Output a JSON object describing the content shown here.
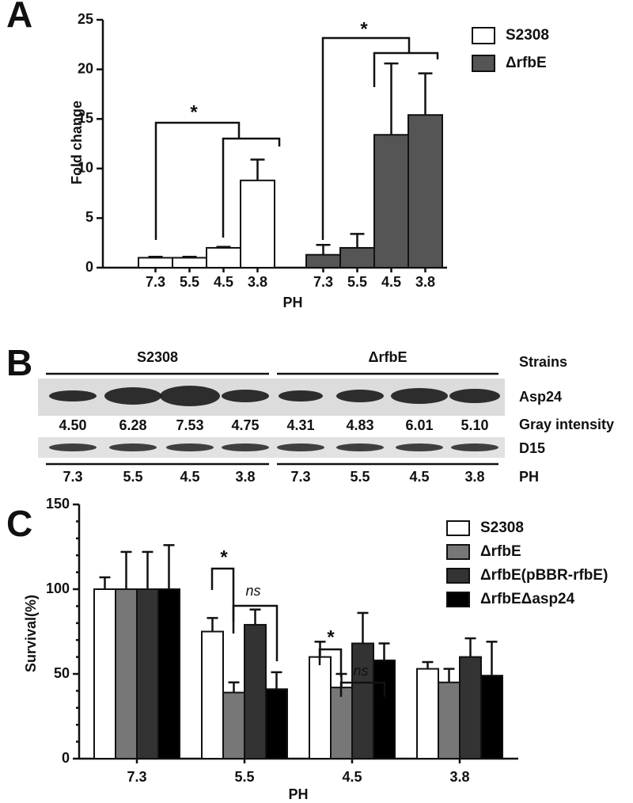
{
  "chart_data": [
    {
      "panel": "A",
      "type": "bar",
      "arrangement": "by-series",
      "y_label": "Fold change",
      "x_label": "PH",
      "categories": [
        "7.3",
        "5.5",
        "4.5",
        "3.8"
      ],
      "series": [
        {
          "name": "S2308",
          "color": "#ffffff",
          "values": [
            1.0,
            1.0,
            2.0,
            8.8
          ],
          "errors": [
            0.1,
            0.1,
            0.1,
            2.1
          ]
        },
        {
          "name": "ΔrfbE",
          "color": "#555555",
          "values": [
            1.3,
            2.0,
            13.4,
            15.4
          ],
          "errors": [
            1.0,
            1.4,
            7.2,
            4.2
          ]
        }
      ],
      "ylim": [
        0,
        25
      ],
      "yticks": [
        0,
        5,
        10,
        15,
        20,
        25
      ],
      "grid": false,
      "legend": "top-right",
      "annotations": [
        "*",
        "*"
      ]
    },
    {
      "panel": "C",
      "type": "bar",
      "arrangement": "grouped",
      "y_label": "Survival(%)",
      "x_label": "PH",
      "categories": [
        "7.3",
        "5.5",
        "4.5",
        "3.8"
      ],
      "series": [
        {
          "name": "S2308",
          "color": "#ffffff",
          "values": [
            100,
            75,
            60,
            53
          ],
          "errors": [
            7,
            8,
            9,
            4
          ]
        },
        {
          "name": "ΔrfbE",
          "color": "#777777",
          "values": [
            100,
            39,
            42,
            45
          ],
          "errors": [
            22,
            6,
            8,
            8
          ]
        },
        {
          "name": "ΔrfbE(pBBR-rfbE)",
          "color": "#333333",
          "values": [
            100,
            79,
            68,
            60
          ],
          "errors": [
            22,
            9,
            18,
            11
          ]
        },
        {
          "name": "ΔrfbEΔasp24",
          "color": "#000000",
          "values": [
            100,
            41,
            58,
            49
          ],
          "errors": [
            26,
            10,
            10,
            20
          ]
        }
      ],
      "ylim": [
        0,
        150
      ],
      "yticks": [
        0,
        50,
        100,
        150
      ],
      "minor_yticks": [
        10,
        20,
        30,
        40,
        60,
        70,
        80,
        90,
        110,
        120,
        130,
        140
      ],
      "grid": false,
      "legend": "top-right",
      "annotations": [
        "*",
        "ns",
        "*",
        "ns"
      ]
    }
  ],
  "blot": {
    "panel": "B",
    "strains": [
      "S2308",
      "ΔrfbE"
    ],
    "row_labels": {
      "strains": "Strains",
      "asp24": "Asp24",
      "gray": "Gray intensity",
      "d15": "D15",
      "ph": "PH"
    },
    "gray_intensity": [
      "4.50",
      "6.28",
      "7.53",
      "4.75",
      "4.31",
      "4.83",
      "6.01",
      "5.10"
    ],
    "ph": [
      "7.3",
      "5.5",
      "4.5",
      "3.8",
      "7.3",
      "5.5",
      "4.5",
      "3.8"
    ]
  }
}
